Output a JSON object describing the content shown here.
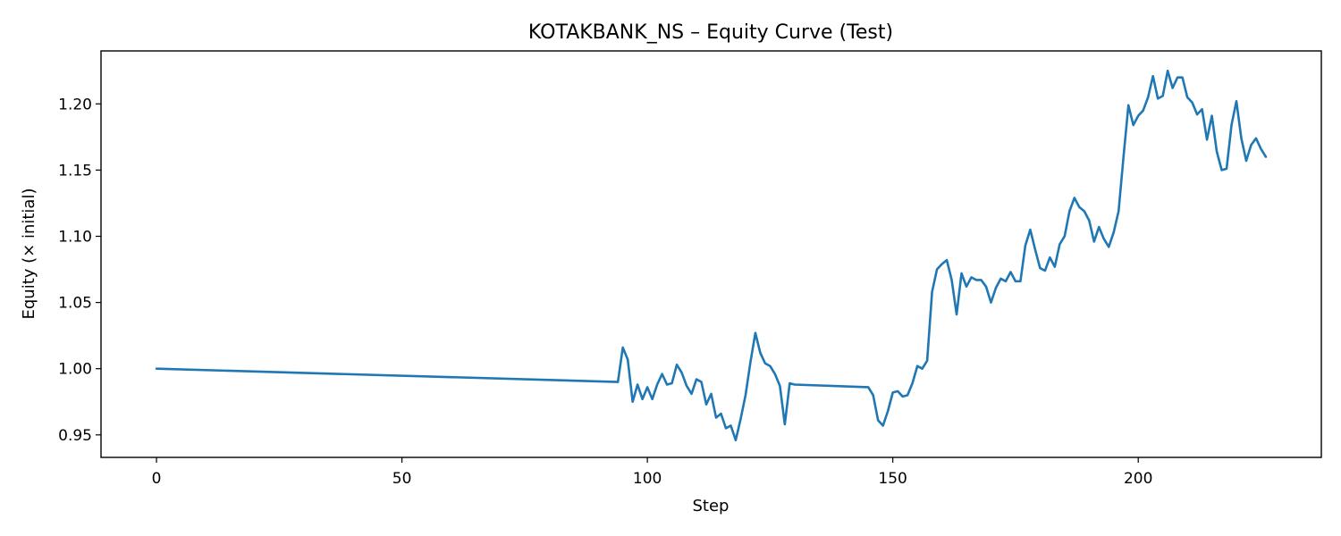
{
  "chart_data": {
    "type": "line",
    "title": "KOTAKBANK_NS – Equity Curve (Test)",
    "xlabel": "Step",
    "ylabel": "Equity (× initial)",
    "xlim": [
      -11.3,
      237.3
    ],
    "ylim": [
      0.933,
      1.24
    ],
    "xticks": [
      0,
      50,
      100,
      150,
      200
    ],
    "xtick_labels": [
      "0",
      "50",
      "100",
      "150",
      "200"
    ],
    "yticks": [
      0.95,
      1.0,
      1.05,
      1.1,
      1.15,
      1.2
    ],
    "ytick_labels": [
      "0.95",
      "1.00",
      "1.05",
      "1.10",
      "1.15",
      "1.20"
    ],
    "grid": false,
    "series": [
      {
        "name": "equity",
        "color": "#1f77b4",
        "x": [
          0,
          94,
          95,
          96,
          97,
          98,
          99,
          100,
          101,
          102,
          103,
          104,
          105,
          106,
          107,
          108,
          109,
          110,
          111,
          112,
          113,
          114,
          115,
          116,
          117,
          118,
          119,
          120,
          121,
          122,
          123,
          124,
          125,
          126,
          127,
          128,
          129,
          130,
          145,
          146,
          147,
          148,
          149,
          150,
          151,
          152,
          153,
          154,
          155,
          156,
          157,
          158,
          159,
          160,
          161,
          162,
          163,
          164,
          165,
          166,
          167,
          168,
          169,
          170,
          171,
          172,
          173,
          174,
          175,
          176,
          177,
          178,
          179,
          180,
          181,
          182,
          183,
          184,
          185,
          186,
          187,
          188,
          189,
          190,
          191,
          192,
          193,
          194,
          195,
          196,
          197,
          198,
          199,
          200,
          201,
          202,
          203,
          204,
          205,
          206,
          207,
          208,
          209,
          210,
          211,
          212,
          213,
          214,
          215,
          216,
          217,
          218,
          219,
          220,
          221,
          222,
          223,
          224,
          225,
          226
        ],
        "y": [
          1.0,
          0.99,
          1.016,
          1.007,
          0.975,
          0.988,
          0.977,
          0.986,
          0.977,
          0.988,
          0.996,
          0.988,
          0.989,
          1.003,
          0.997,
          0.987,
          0.981,
          0.992,
          0.99,
          0.973,
          0.981,
          0.963,
          0.966,
          0.955,
          0.957,
          0.946,
          0.962,
          0.98,
          1.005,
          1.027,
          1.012,
          1.004,
          1.002,
          0.996,
          0.987,
          0.958,
          0.989,
          0.988,
          0.986,
          0.98,
          0.961,
          0.957,
          0.968,
          0.982,
          0.983,
          0.979,
          0.98,
          0.989,
          1.002,
          1.0,
          1.006,
          1.058,
          1.075,
          1.079,
          1.082,
          1.067,
          1.041,
          1.072,
          1.062,
          1.069,
          1.067,
          1.067,
          1.062,
          1.05,
          1.061,
          1.068,
          1.066,
          1.073,
          1.066,
          1.066,
          1.093,
          1.105,
          1.09,
          1.076,
          1.074,
          1.084,
          1.077,
          1.094,
          1.1,
          1.119,
          1.129,
          1.122,
          1.119,
          1.112,
          1.096,
          1.107,
          1.098,
          1.092,
          1.103,
          1.119,
          1.16,
          1.199,
          1.184,
          1.191,
          1.195,
          1.205,
          1.221,
          1.204,
          1.206,
          1.225,
          1.212,
          1.22,
          1.22,
          1.205,
          1.201,
          1.192,
          1.196,
          1.173,
          1.191,
          1.164,
          1.15,
          1.151,
          1.184,
          1.202,
          1.174,
          1.157,
          1.169,
          1.174,
          1.166,
          1.16
        ]
      }
    ]
  }
}
